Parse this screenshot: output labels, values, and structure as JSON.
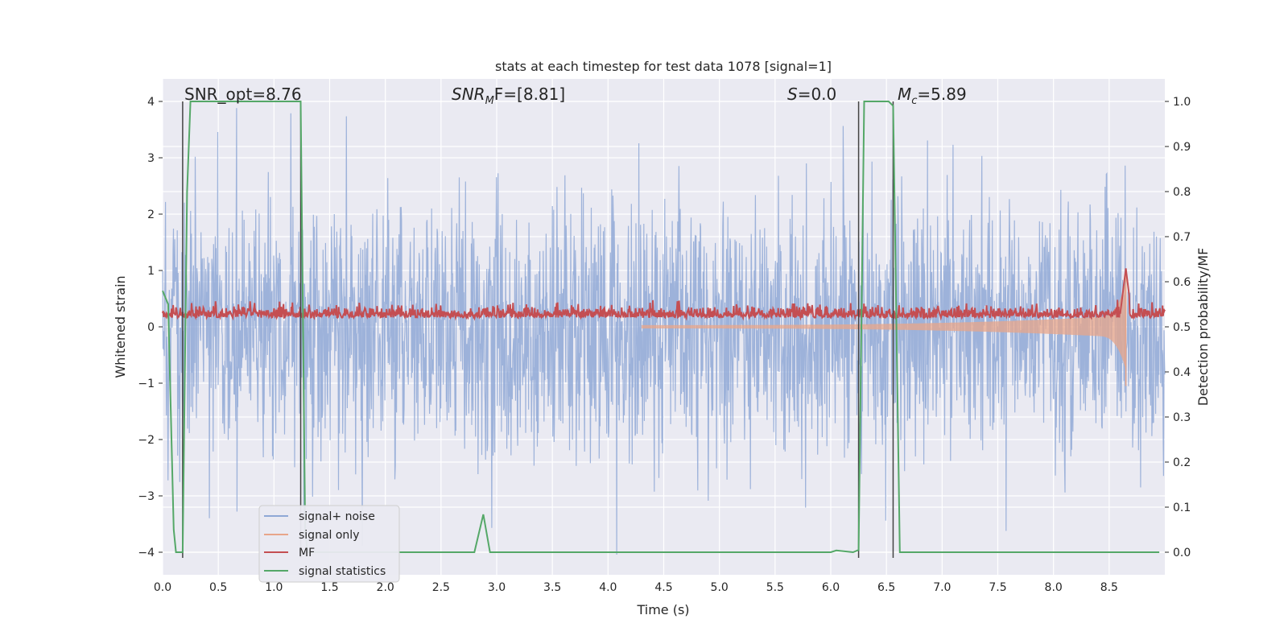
{
  "chart_data": {
    "type": "line",
    "title": "stats at each timestep for test data 1078 [signal=1]",
    "xlabel": "Time (s)",
    "ylabel": "Whitened strain",
    "ylabel_right": "Detection probability/MF",
    "xlim": [
      0,
      9.0
    ],
    "ylim": [
      -4.4,
      4.4
    ],
    "ylim_right": [
      -0.05,
      1.05
    ],
    "x_ticks": [
      "0.0",
      "0.5",
      "1.0",
      "1.5",
      "2.0",
      "2.5",
      "3.0",
      "3.5",
      "4.0",
      "4.5",
      "5.0",
      "5.5",
      "6.0",
      "6.5",
      "7.0",
      "7.5",
      "8.0",
      "8.5"
    ],
    "y_ticks": [
      "−4",
      "−3",
      "−2",
      "−1",
      "0",
      "1",
      "2",
      "3",
      "4"
    ],
    "y_ticks_right": [
      "0.0",
      "0.1",
      "0.2",
      "0.3",
      "0.4",
      "0.5",
      "0.6",
      "0.7",
      "0.8",
      "0.9",
      "1.0"
    ],
    "grid": true,
    "legend_position": "lower-left",
    "annotations": [
      {
        "id": "snr-opt",
        "text": "SNR_opt=8.76"
      },
      {
        "id": "snr-mf",
        "text_base": "SNR",
        "text_sub": "M",
        "text_rest": "F=[8.81]"
      },
      {
        "id": "s",
        "text_base": "S",
        "text_rest": "=0.0"
      },
      {
        "id": "mc",
        "text_base": "M",
        "text_sub": "c",
        "text_rest": "=5.89"
      }
    ],
    "vertical_markers_s": [
      0.18,
      1.24,
      6.25,
      6.56
    ],
    "series": [
      {
        "name": "signal+ noise",
        "color": "#8fa8d6",
        "axis": "left",
        "description_level": "noise amplitude ~ ±1.6 typical, peaks to ±4"
      },
      {
        "name": "signal only",
        "color": "#e8a58a",
        "axis": "left",
        "peak_time": 8.65,
        "peak_amplitude": 1.0
      },
      {
        "name": "MF",
        "color": "#c44e52",
        "axis": "right",
        "baseline": 0.52
      },
      {
        "name": "signal statistics",
        "color": "#55a868",
        "axis": "right",
        "x": [
          0.0,
          0.05,
          0.1,
          0.12,
          0.18,
          0.22,
          0.25,
          1.24,
          1.28,
          1.3,
          2.8,
          2.88,
          2.94,
          6.0,
          6.05,
          6.2,
          6.25,
          6.3,
          6.52,
          6.56,
          6.62,
          8.95
        ],
        "y": [
          0.58,
          0.55,
          0.05,
          0.0,
          0.0,
          0.8,
          1.0,
          1.0,
          0.05,
          0.0,
          0.0,
          0.084,
          0.0,
          0.0,
          0.004,
          0.0,
          0.005,
          1.0,
          1.0,
          0.99,
          0.0,
          0.0
        ]
      }
    ]
  }
}
